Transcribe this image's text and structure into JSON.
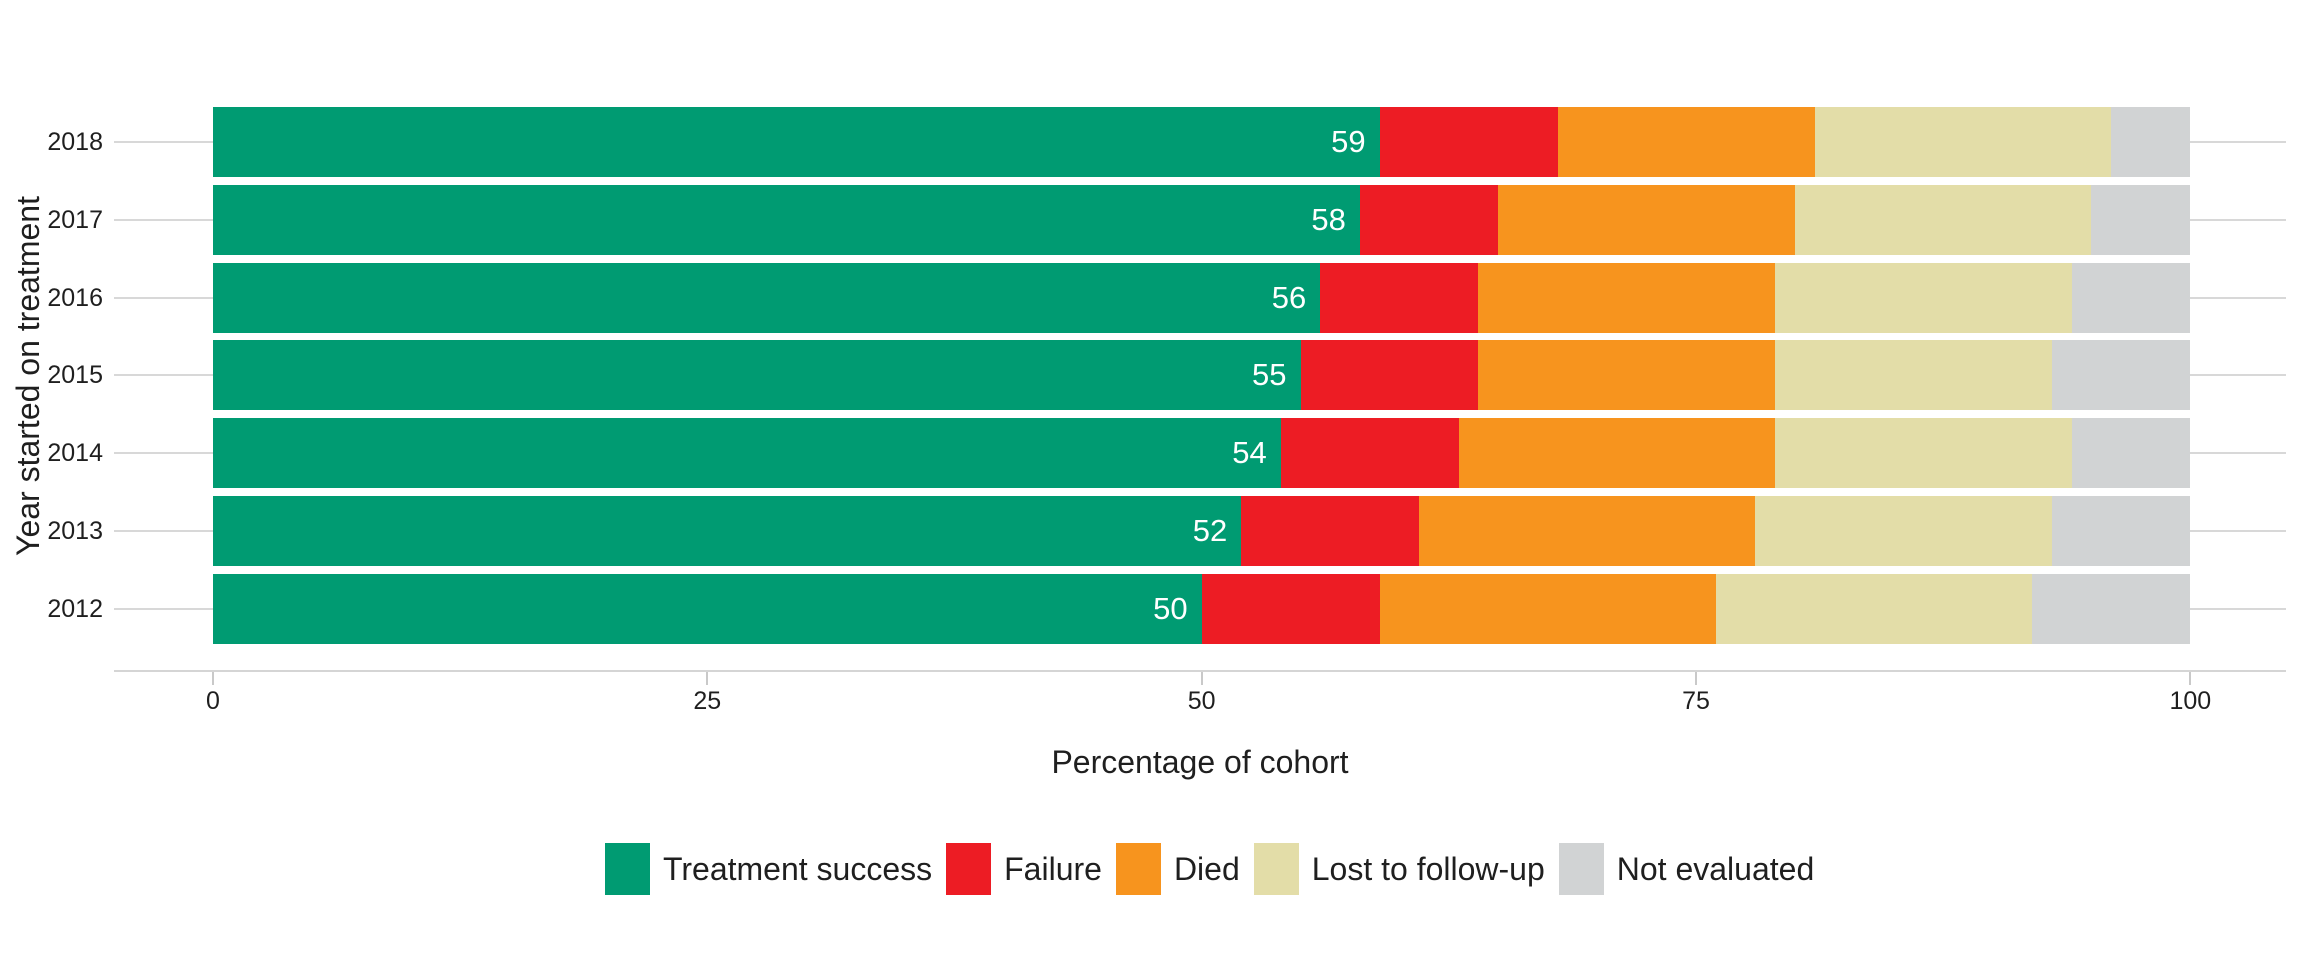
{
  "chart_data": {
    "type": "bar",
    "orientation": "horizontal",
    "stacked": true,
    "title": "",
    "xlabel": "Percentage of cohort",
    "ylabel": "Year started on treatment",
    "xlim": [
      0,
      100
    ],
    "x_ticks": [
      "0",
      "25",
      "50",
      "75",
      "100"
    ],
    "x_tick_values": [
      0,
      25,
      50,
      75,
      100
    ],
    "categories": [
      "2018",
      "2017",
      "2016",
      "2015",
      "2014",
      "2013",
      "2012"
    ],
    "series": [
      {
        "name": "Treatment success",
        "color": "#009b72",
        "values": [
          59,
          58,
          56,
          55,
          54,
          52,
          50
        ]
      },
      {
        "name": "Failure",
        "color": "#ed1c24",
        "values": [
          9,
          7,
          8,
          9,
          9,
          9,
          9
        ]
      },
      {
        "name": "Died",
        "color": "#f7941e",
        "values": [
          13,
          15,
          15,
          15,
          16,
          17,
          17
        ]
      },
      {
        "name": "Lost to follow-up",
        "color": "#e3dda8",
        "values": [
          15,
          15,
          15,
          14,
          15,
          15,
          16
        ]
      },
      {
        "name": "Not evaluated",
        "color": "#d1d3d4",
        "values": [
          4,
          5,
          6,
          7,
          6,
          7,
          8
        ]
      }
    ],
    "bar_labels": [
      "59",
      "58",
      "56",
      "55",
      "54",
      "52",
      "50"
    ],
    "bar_label_series": "Treatment success",
    "legend_position": "bottom",
    "grid": "horizontal-row-lines",
    "colors": {
      "background": "#ffffff",
      "grid_line": "#d8d8d8",
      "axis_line": "#d5d5d5",
      "tick_mark": "#c9c9c9",
      "axis_text": "#1f1f1f",
      "bar_label_text": "#ffffff"
    }
  }
}
